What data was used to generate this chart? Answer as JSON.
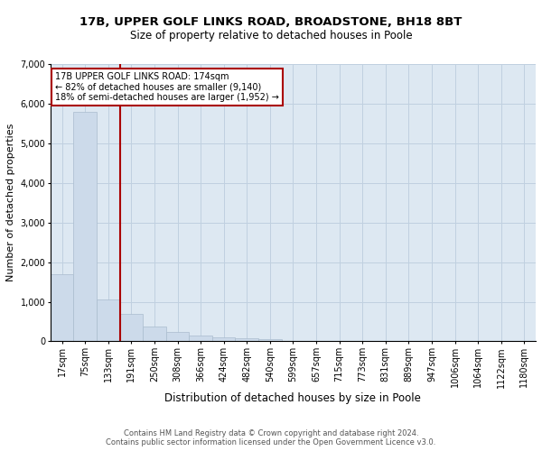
{
  "title_line1": "17B, UPPER GOLF LINKS ROAD, BROADSTONE, BH18 8BT",
  "title_line2": "Size of property relative to detached houses in Poole",
  "xlabel": "Distribution of detached houses by size in Poole",
  "ylabel": "Number of detached properties",
  "footer_line1": "Contains HM Land Registry data © Crown copyright and database right 2024.",
  "footer_line2": "Contains public sector information licensed under the Open Government Licence v3.0.",
  "bar_labels": [
    "17sqm",
    "75sqm",
    "133sqm",
    "191sqm",
    "250sqm",
    "308sqm",
    "366sqm",
    "424sqm",
    "482sqm",
    "540sqm",
    "599sqm",
    "657sqm",
    "715sqm",
    "773sqm",
    "831sqm",
    "889sqm",
    "947sqm",
    "1006sqm",
    "1064sqm",
    "1122sqm",
    "1180sqm"
  ],
  "bar_values": [
    1700,
    5800,
    1050,
    700,
    380,
    230,
    150,
    90,
    80,
    50,
    20,
    10,
    5,
    3,
    2,
    1,
    1,
    1,
    0,
    0,
    0
  ],
  "bar_color": "#ccdaea",
  "bar_edge_color": "#aabcce",
  "vline_color": "#aa0000",
  "annotation_text": "17B UPPER GOLF LINKS ROAD: 174sqm\n← 82% of detached houses are smaller (9,140)\n18% of semi-detached houses are larger (1,952) →",
  "annotation_box_color": "#aa0000",
  "ylim": [
    0,
    7000
  ],
  "yticks": [
    0,
    1000,
    2000,
    3000,
    4000,
    5000,
    6000,
    7000
  ],
  "grid_color": "#c0d0e0",
  "bg_color": "#dde8f2",
  "title_fontsize": 9.5,
  "subtitle_fontsize": 8.5,
  "xlabel_fontsize": 8.5,
  "ylabel_fontsize": 8,
  "tick_fontsize": 7,
  "annotation_fontsize": 7
}
